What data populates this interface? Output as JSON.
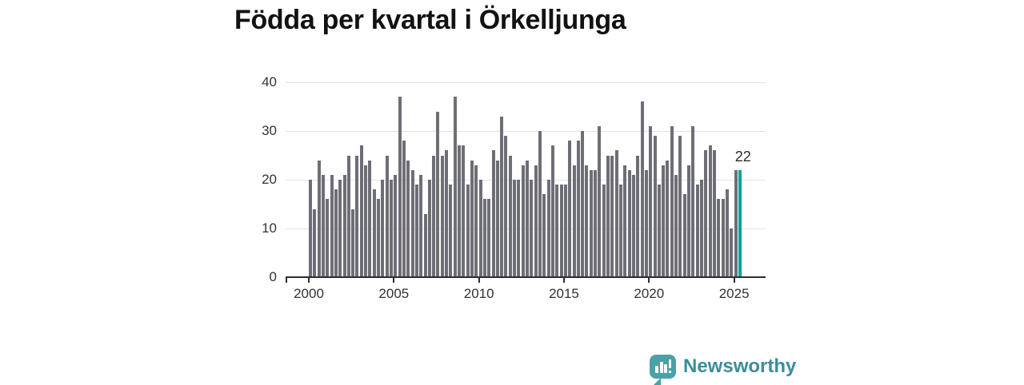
{
  "title": "Födda per kvartal i Örkelljunga",
  "colors": {
    "bar": "#6E6E76",
    "highlight": "#00A49B",
    "gridline": "#E3E3E3",
    "axis": "#2E2E2E",
    "axis_text": "#333333",
    "title_text": "#121212",
    "background": "#FFFFFF",
    "logo_mark": "#4AA1A7",
    "logo_text": "#3A8E9A"
  },
  "annotation": {
    "label": "22"
  },
  "logo": {
    "text": "Newsworthy",
    "icon": "bar-chart-speech-bubble-icon"
  },
  "chart_data": {
    "type": "bar",
    "title": "Födda per kvartal i Örkelljunga",
    "frequency": "quarterly",
    "start_period": "2000 Q1",
    "end_period": "2025 Q2",
    "xlabel": "",
    "ylabel": "",
    "ylim": [
      0,
      40
    ],
    "grid": "horizontal",
    "legend": "none",
    "y_ticks": [
      0,
      10,
      20,
      30,
      40
    ],
    "x_tick_labels": [
      "2000",
      "2005",
      "2010",
      "2015",
      "2020",
      "2025"
    ],
    "highlight_index": 101,
    "highlight_label": "22",
    "values": [
      20,
      14,
      24,
      21,
      16,
      21,
      18,
      20,
      21,
      25,
      14,
      25,
      27,
      23,
      24,
      18,
      16,
      20,
      25,
      20,
      21,
      37,
      28,
      24,
      22,
      19,
      21,
      13,
      20,
      25,
      34,
      25,
      26,
      19,
      37,
      27,
      27,
      19,
      24,
      23,
      20,
      16,
      16,
      26,
      24,
      33,
      29,
      25,
      20,
      20,
      23,
      24,
      20,
      23,
      30,
      17,
      20,
      27,
      19,
      19,
      19,
      28,
      23,
      28,
      30,
      23,
      22,
      22,
      31,
      19,
      25,
      25,
      26,
      19,
      23,
      22,
      21,
      25,
      36,
      22,
      31,
      29,
      19,
      23,
      24,
      31,
      21,
      29,
      17,
      23,
      31,
      19,
      20,
      26,
      27,
      26,
      16,
      16,
      18,
      10,
      22,
      22
    ]
  }
}
